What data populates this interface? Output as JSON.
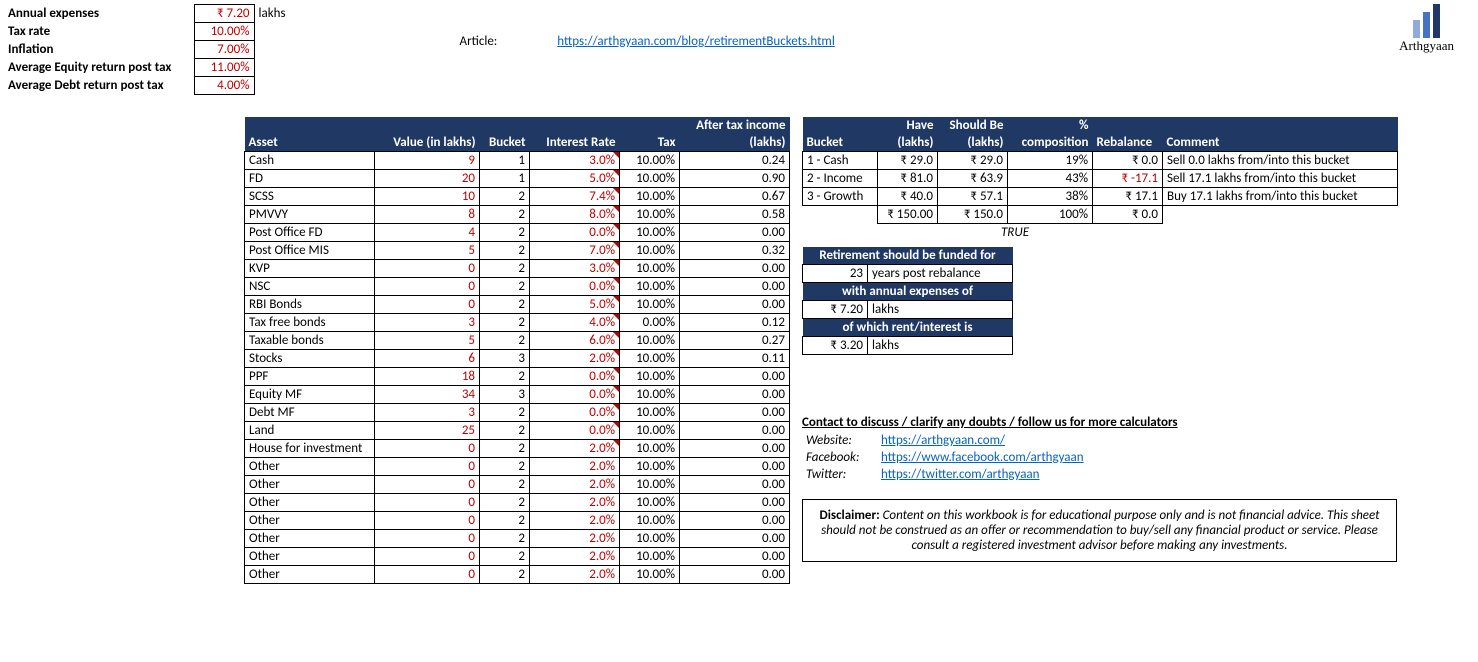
{
  "params": {
    "rows": [
      {
        "label": "Annual expenses",
        "value": "₹ 7.20",
        "unit": "lakhs"
      },
      {
        "label": "Tax rate",
        "value": "10.00%",
        "unit": ""
      },
      {
        "label": "Inflation",
        "value": "7.00%",
        "unit": ""
      },
      {
        "label": "Average Equity return post tax",
        "value": "11.00%",
        "unit": ""
      },
      {
        "label": "Average Debt return post tax",
        "value": "4.00%",
        "unit": ""
      }
    ]
  },
  "article": {
    "label": "Article:",
    "url": "https://arthgyaan.com/blog/retirementBuckets.html"
  },
  "logo": {
    "name": "Arthgyaan",
    "bars": [
      {
        "h": 18,
        "c": "#8faadc"
      },
      {
        "h": 26,
        "c": "#4472c4"
      },
      {
        "h": 34,
        "c": "#1f3864"
      }
    ]
  },
  "assets": {
    "headers": [
      "Asset",
      "Value (in lakhs)",
      "Bucket",
      "Interest Rate",
      "Tax",
      "After tax income (lakhs)"
    ],
    "rows": [
      {
        "asset": "Cash",
        "value": "9",
        "bucket": "1",
        "rate": "3.0%",
        "tax": "10.00%",
        "income": "0.24",
        "corner": true
      },
      {
        "asset": "FD",
        "value": "20",
        "bucket": "1",
        "rate": "5.0%",
        "tax": "10.00%",
        "income": "0.90",
        "corner": true
      },
      {
        "asset": "SCSS",
        "value": "10",
        "bucket": "2",
        "rate": "7.4%",
        "tax": "10.00%",
        "income": "0.67",
        "corner": true
      },
      {
        "asset": "PMVVY",
        "value": "8",
        "bucket": "2",
        "rate": "8.0%",
        "tax": "10.00%",
        "income": "0.58",
        "corner": true
      },
      {
        "asset": "Post Office FD",
        "value": "4",
        "bucket": "2",
        "rate": "0.0%",
        "tax": "10.00%",
        "income": "0.00",
        "corner": true
      },
      {
        "asset": "Post Office MIS",
        "value": "5",
        "bucket": "2",
        "rate": "7.0%",
        "tax": "10.00%",
        "income": "0.32",
        "corner": true
      },
      {
        "asset": "KVP",
        "value": "0",
        "bucket": "2",
        "rate": "3.0%",
        "tax": "10.00%",
        "income": "0.00",
        "corner": true
      },
      {
        "asset": "NSC",
        "value": "0",
        "bucket": "2",
        "rate": "0.0%",
        "tax": "10.00%",
        "income": "0.00",
        "corner": true
      },
      {
        "asset": "RBI Bonds",
        "value": "0",
        "bucket": "2",
        "rate": "5.0%",
        "tax": "10.00%",
        "income": "0.00",
        "corner": true
      },
      {
        "asset": "Tax free bonds",
        "value": "3",
        "bucket": "2",
        "rate": "4.0%",
        "tax": "0.00%",
        "income": "0.12",
        "corner": true
      },
      {
        "asset": "Taxable bonds",
        "value": "5",
        "bucket": "2",
        "rate": "6.0%",
        "tax": "10.00%",
        "income": "0.27",
        "corner": true
      },
      {
        "asset": "Stocks",
        "value": "6",
        "bucket": "3",
        "rate": "2.0%",
        "tax": "10.00%",
        "income": "0.11",
        "corner": true
      },
      {
        "asset": "PPF",
        "value": "18",
        "bucket": "2",
        "rate": "0.0%",
        "tax": "10.00%",
        "income": "0.00",
        "corner": true
      },
      {
        "asset": "Equity MF",
        "value": "34",
        "bucket": "3",
        "rate": "0.0%",
        "tax": "10.00%",
        "income": "0.00",
        "corner": true
      },
      {
        "asset": "Debt MF",
        "value": "3",
        "bucket": "2",
        "rate": "0.0%",
        "tax": "10.00%",
        "income": "0.00",
        "corner": true
      },
      {
        "asset": "Land",
        "value": "25",
        "bucket": "2",
        "rate": "0.0%",
        "tax": "10.00%",
        "income": "0.00",
        "corner": true
      },
      {
        "asset": "House for investment",
        "value": "0",
        "bucket": "2",
        "rate": "2.0%",
        "tax": "10.00%",
        "income": "0.00",
        "corner": true
      },
      {
        "asset": "Other",
        "value": "0",
        "bucket": "2",
        "rate": "2.0%",
        "tax": "10.00%",
        "income": "0.00",
        "corner": false
      },
      {
        "asset": "Other",
        "value": "0",
        "bucket": "2",
        "rate": "2.0%",
        "tax": "10.00%",
        "income": "0.00",
        "corner": false
      },
      {
        "asset": "Other",
        "value": "0",
        "bucket": "2",
        "rate": "2.0%",
        "tax": "10.00%",
        "income": "0.00",
        "corner": false
      },
      {
        "asset": "Other",
        "value": "0",
        "bucket": "2",
        "rate": "2.0%",
        "tax": "10.00%",
        "income": "0.00",
        "corner": false
      },
      {
        "asset": "Other",
        "value": "0",
        "bucket": "2",
        "rate": "2.0%",
        "tax": "10.00%",
        "income": "0.00",
        "corner": false
      },
      {
        "asset": "Other",
        "value": "0",
        "bucket": "2",
        "rate": "2.0%",
        "tax": "10.00%",
        "income": "0.00",
        "corner": false
      },
      {
        "asset": "Other",
        "value": "0",
        "bucket": "2",
        "rate": "2.0%",
        "tax": "10.00%",
        "income": "0.00",
        "corner": false
      }
    ]
  },
  "buckets": {
    "headers": [
      "Bucket",
      "Have (lakhs)",
      "Should Be (lakhs)",
      "% composition",
      "Rebalance",
      "Comment"
    ],
    "rows": [
      {
        "bucket": "1 - Cash",
        "have": "₹ 29.0",
        "should": "₹ 29.0",
        "pct": "19%",
        "rebal": "₹ 0.0",
        "rebalNeg": false,
        "comment": "Sell 0.0 lakhs from/into this bucket"
      },
      {
        "bucket": "2 - Income",
        "have": "₹ 81.0",
        "should": "₹ 63.9",
        "pct": "43%",
        "rebal": "₹ -17.1",
        "rebalNeg": true,
        "comment": "Sell 17.1 lakhs from/into this bucket"
      },
      {
        "bucket": "3 - Growth",
        "have": "₹ 40.0",
        "should": "₹ 57.1",
        "pct": "38%",
        "rebal": "₹ 17.1",
        "rebalNeg": false,
        "comment": "Buy 17.1 lakhs from/into this bucket"
      }
    ],
    "totals": {
      "have": "₹ 150.00",
      "should": "₹ 150.0",
      "pct": "100%",
      "rebal": "₹ 0.0"
    },
    "truenote": "TRUE"
  },
  "summary": [
    {
      "type": "h",
      "text": "Retirement should be funded for"
    },
    {
      "type": "v",
      "val": "23",
      "unit": "years post rebalance"
    },
    {
      "type": "h",
      "text": "with annual expenses of"
    },
    {
      "type": "v",
      "val": "₹ 7.20",
      "unit": "lakhs"
    },
    {
      "type": "h",
      "text": "of which rent/interest is"
    },
    {
      "type": "v",
      "val": "₹ 3.20",
      "unit": "lakhs"
    }
  ],
  "contact": {
    "heading": "Contact to discuss / clarify any doubts / follow us for more calculators",
    "rows": [
      {
        "label": "Website:",
        "url": "https://arthgyaan.com/"
      },
      {
        "label": "Facebook:",
        "url": "https://www.facebook.com/arthgyaan"
      },
      {
        "label": "Twitter:",
        "url": "https://twitter.com/arthgyaan"
      }
    ]
  },
  "disclaimer": {
    "label": "Disclaimer:",
    "text": " Content on this workbook is for educational purpose only and is not financial advice. This sheet should not be construed as an offer or recommendation to buy/sell any financial product or service. Please consult a registered investment advisor before making any investments."
  }
}
